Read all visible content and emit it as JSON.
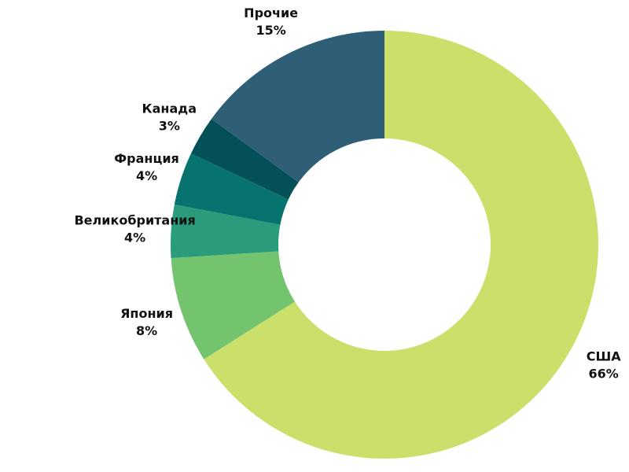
{
  "chart_data": {
    "type": "donut",
    "categories": [
      "США",
      "Япония",
      "Великобритания",
      "Франция",
      "Канада",
      "Прочие"
    ],
    "values": [
      66,
      8,
      4,
      4,
      3,
      15
    ],
    "value_labels": [
      "66%",
      "8%",
      "4%",
      "4%",
      "3%",
      "15%"
    ],
    "colors": [
      "#cbe06a",
      "#74c46f",
      "#2a9c7b",
      "#07736f",
      "#045059",
      "#2e5f77"
    ]
  }
}
